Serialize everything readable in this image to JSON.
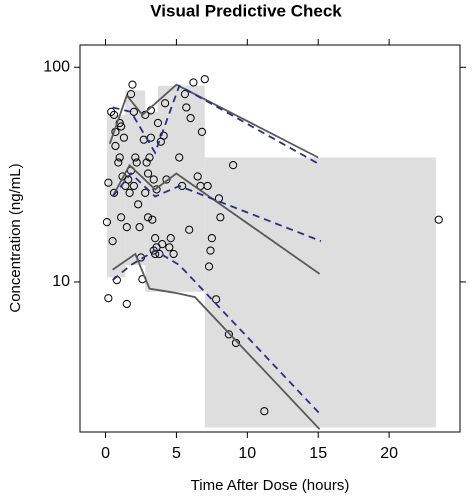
{
  "chart_data": {
    "type": "scatter",
    "title": "Visual Predictive Check",
    "x_label": "Time After Dose (hours)",
    "y_label": "Concentration (ng/mL)",
    "xlim": [
      -1.8,
      25
    ],
    "xticks": [
      0,
      5,
      10,
      15,
      20
    ],
    "ylim": [
      2,
      127
    ],
    "yticks": [
      10,
      100
    ],
    "ylog": true,
    "shaded_regions": {
      "color": "#dedede",
      "regions": [
        {
          "xlim": [
            0.1,
            1.4
          ],
          "ylim": [
            10.5,
            60
          ]
        },
        {
          "xlim": [
            1.4,
            2.8
          ],
          "ylim": [
            12,
            78
          ]
        },
        {
          "xlim": [
            2.8,
            3.7
          ],
          "ylim": [
            9,
            62
          ]
        },
        {
          "xlim": [
            3.7,
            7
          ],
          "ylim": [
            9,
            82
          ]
        },
        {
          "xlim": [
            7,
            23.3
          ],
          "ylim": [
            2.1,
            38
          ]
        }
      ]
    },
    "series": [
      {
        "style": "points",
        "color": "#000000",
        "x": [
          0.1,
          0.2,
          0.2,
          0.4,
          0.5,
          0.6,
          0.6,
          0.7,
          0.7,
          0.8,
          0.9,
          1.0,
          1.0,
          1.1,
          1.1,
          1.2,
          1.3,
          1.4,
          1.5,
          1.5,
          1.6,
          1.7,
          1.8,
          1.8,
          1.9,
          2.0,
          2.0,
          2.1,
          2.2,
          2.3,
          2.4,
          2.5,
          2.6,
          2.7,
          2.8,
          2.8,
          2.9,
          3.0,
          3.0,
          3.1,
          3.2,
          3.2,
          3.3,
          3.4,
          3.4,
          3.5,
          3.5,
          3.6,
          3.6,
          3.7,
          3.8,
          3.9,
          4.0,
          4.1,
          4.2,
          4.3,
          4.5,
          4.6,
          4.8,
          5.2,
          5.4,
          5.6,
          5.7,
          5.9,
          6.0,
          6.2,
          6.5,
          6.7,
          6.8,
          7.0,
          7.2,
          7.3,
          7.4,
          7.5,
          7.8,
          8.0,
          8.1,
          8.7,
          9.0,
          9.2,
          11.2,
          23.5
        ],
        "values": [
          19,
          29,
          8.4,
          62,
          15.5,
          26,
          60,
          50,
          43,
          10.2,
          36,
          38,
          55,
          53,
          20,
          31,
          47,
          28,
          7.9,
          18,
          30,
          26,
          33,
          75,
          83,
          62,
          28,
          38,
          36,
          23,
          18,
          13,
          10.3,
          46,
          26,
          60,
          36,
          32,
          20,
          38,
          47,
          63,
          19.5,
          14,
          30,
          16,
          13.5,
          14.5,
          27,
          55,
          13.5,
          45,
          15,
          48,
          68,
          30,
          14.5,
          16,
          13.5,
          38,
          28,
          75,
          65,
          17.5,
          58,
          85,
          31,
          28,
          50,
          88,
          28,
          11.8,
          14,
          16,
          8.3,
          24.5,
          20,
          5.7,
          35,
          5.2,
          2.5,
          19.5
        ]
      },
      {
        "style": "solid",
        "color": "#5a5a5a",
        "x": [
          0.3,
          1.5,
          2.6,
          5.0,
          15.0
        ],
        "values": [
          44,
          74,
          60,
          83,
          38
        ]
      },
      {
        "style": "solid",
        "color": "#5a5a5a",
        "x": [
          0.5,
          1.7,
          3.5,
          5.0,
          15.1
        ],
        "values": [
          25,
          35,
          27,
          32,
          10.9
        ]
      },
      {
        "style": "solid",
        "color": "#5a5a5a",
        "x": [
          0.5,
          2.1,
          3.1,
          4.9,
          6.3,
          15.1
        ],
        "values": [
          11.4,
          13.5,
          9.3,
          8.9,
          8.5,
          2.06
        ]
      },
      {
        "style": "dashed",
        "color": "#2e2e80",
        "x": [
          0.5,
          1.8,
          3.5,
          5.2,
          15.2
        ],
        "values": [
          65,
          62,
          40,
          82,
          35
        ]
      },
      {
        "style": "dashed",
        "color": "#2e2e80",
        "x": [
          0.5,
          1.8,
          3.5,
          5.2,
          15.2
        ],
        "values": [
          25,
          32,
          25,
          28,
          15.5
        ]
      },
      {
        "style": "dashed",
        "color": "#2e2e80",
        "x": [
          0.5,
          1.8,
          3.5,
          5.2,
          15.2
        ],
        "values": [
          10.2,
          12,
          14,
          12,
          2.4
        ]
      }
    ]
  }
}
